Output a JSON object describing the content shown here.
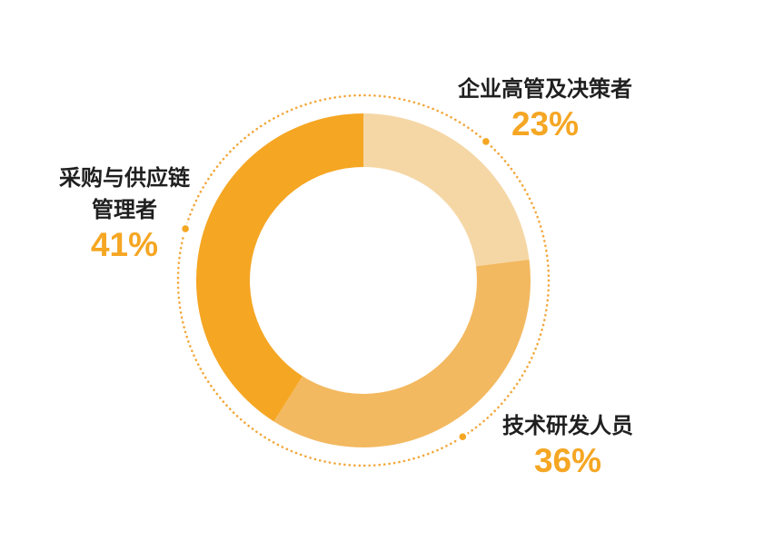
{
  "chart_data": {
    "type": "pie",
    "subtype": "donut",
    "title": "",
    "unit": "%",
    "start_angle": "top",
    "direction": "clockwise",
    "legend_position": "callout-labels",
    "grid": false,
    "inner_radius_ratio": 0.68,
    "segments": [
      {
        "id": "executives",
        "label": "企业高管及决策者",
        "value": 23,
        "display": "23%",
        "color": "#F5D7A6"
      },
      {
        "id": "tech-rd",
        "label": "技术研发人员",
        "value": 36,
        "display": "36%",
        "color": "#F3B960"
      },
      {
        "id": "procurement-supply-chain",
        "label": "采购与供应链管理者",
        "value": 41,
        "display": "41%",
        "color": "#F5A623"
      }
    ]
  },
  "labels": {
    "executives": {
      "name": "企业高管及决策者",
      "pct": "23%"
    },
    "tech": {
      "name": "技术研发人员",
      "pct": "36%"
    },
    "procurement": {
      "name": "采购与供应链\n管理者",
      "pct": "41%"
    }
  },
  "colors": {
    "accent": "#F5A623",
    "segment_medium": "#F3B960",
    "segment_light": "#F5D7A6",
    "dotted_ring": "#F2A73A",
    "label_text": "#1F1F1F",
    "background": "#FFFFFF"
  }
}
